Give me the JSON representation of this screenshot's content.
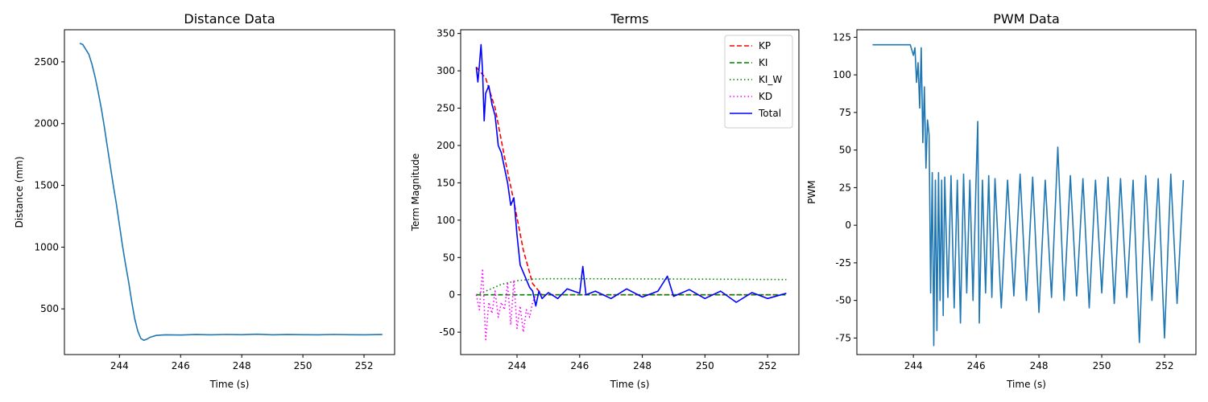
{
  "chart_data": [
    {
      "type": "line",
      "title": "Distance Data",
      "xlabel": "Time (s)",
      "ylabel": "Distance (mm)",
      "xlim": [
        242.2,
        253.0
      ],
      "ylim": [
        130,
        2760
      ],
      "xticks": [
        244,
        246,
        248,
        250,
        252
      ],
      "yticks": [
        500,
        1000,
        1500,
        2000,
        2500
      ],
      "series": [
        {
          "color": "#1f77b4",
          "style": "solid",
          "x": [
            242.7,
            242.8,
            242.9,
            243.0,
            243.1,
            243.2,
            243.3,
            243.4,
            243.5,
            243.6,
            243.7,
            243.8,
            243.9,
            244.0,
            244.1,
            244.2,
            244.3,
            244.4,
            244.5,
            244.6,
            244.7,
            244.8,
            244.9,
            245.0,
            245.2,
            245.5,
            246.0,
            246.5,
            247.0,
            247.5,
            248.0,
            248.5,
            249.0,
            249.5,
            250.0,
            250.5,
            251.0,
            251.5,
            252.0,
            252.6
          ],
          "y": [
            2650,
            2640,
            2600,
            2560,
            2480,
            2380,
            2260,
            2130,
            1980,
            1820,
            1660,
            1500,
            1350,
            1180,
            1010,
            860,
            720,
            560,
            420,
            320,
            260,
            245,
            255,
            270,
            285,
            290,
            288,
            292,
            290,
            293,
            291,
            295,
            290,
            292,
            291,
            290,
            293,
            291,
            290,
            292
          ]
        }
      ]
    },
    {
      "type": "line",
      "title": "Terms",
      "xlabel": "Time (s)",
      "ylabel": "Term Magnitude",
      "xlim": [
        242.2,
        253.0
      ],
      "ylim": [
        -80,
        355
      ],
      "xticks": [
        244,
        246,
        248,
        250,
        252
      ],
      "yticks": [
        -50,
        0,
        50,
        100,
        150,
        200,
        250,
        300,
        350
      ],
      "legend_position": "upper-right",
      "series": [
        {
          "name": "KP",
          "color": "#ff0000",
          "style": "dashed",
          "x": [
            242.7,
            243.0,
            243.3,
            243.6,
            243.9,
            244.2,
            244.5,
            244.8,
            245.5,
            252.6
          ],
          "y": [
            305,
            290,
            250,
            185,
            125,
            60,
            15,
            0,
            0,
            0
          ]
        },
        {
          "name": "KI",
          "color": "#008000",
          "style": "dashed",
          "x": [
            242.7,
            244.5,
            252.6
          ],
          "y": [
            0,
            0,
            0
          ]
        },
        {
          "name": "KI_W",
          "color": "#008000",
          "style": "dotted",
          "x": [
            242.7,
            243.0,
            243.5,
            244.0,
            244.5,
            245.0,
            246.0,
            248.0,
            250.0,
            252.6
          ],
          "y": [
            0,
            5,
            14,
            19,
            21,
            21.5,
            21.5,
            21.3,
            21.0,
            20.5
          ]
        },
        {
          "name": "KD",
          "color": "#ff00ff",
          "style": "dotted",
          "x": [
            242.7,
            242.8,
            242.9,
            243.0,
            243.1,
            243.2,
            243.3,
            243.4,
            243.5,
            243.6,
            243.7,
            243.8,
            243.9,
            244.0,
            244.1,
            244.2,
            244.3,
            244.4,
            244.5,
            244.6
          ],
          "y": [
            0,
            -20,
            35,
            -60,
            -10,
            -25,
            5,
            -30,
            -10,
            -20,
            15,
            -40,
            20,
            -45,
            -15,
            -50,
            -20,
            -30,
            -10,
            0
          ]
        },
        {
          "name": "Total",
          "color": "#0000ff",
          "style": "solid",
          "x": [
            242.7,
            242.75,
            242.8,
            242.85,
            242.9,
            242.95,
            243.0,
            243.1,
            243.2,
            243.3,
            243.4,
            243.5,
            243.6,
            243.7,
            243.8,
            243.9,
            244.0,
            244.1,
            244.2,
            244.3,
            244.4,
            244.5,
            244.6,
            244.7,
            244.8,
            245.0,
            245.3,
            245.6,
            246.0,
            246.1,
            246.2,
            246.5,
            247.0,
            247.5,
            248.0,
            248.5,
            248.8,
            249.0,
            249.5,
            250.0,
            250.5,
            251.0,
            251.5,
            252.0,
            252.6
          ],
          "y": [
            305,
            285,
            308,
            335,
            300,
            233,
            270,
            280,
            255,
            240,
            200,
            190,
            170,
            150,
            120,
            130,
            80,
            40,
            30,
            20,
            10,
            5,
            -15,
            5,
            -5,
            3,
            -5,
            8,
            2,
            38,
            0,
            5,
            -5,
            8,
            -3,
            5,
            25,
            -2,
            7,
            -5,
            5,
            -10,
            3,
            -5,
            2
          ]
        }
      ]
    },
    {
      "type": "line",
      "title": "PWM Data",
      "xlabel": "Time (s)",
      "ylabel": "PWM",
      "xlim": [
        242.2,
        253.0
      ],
      "ylim": [
        -86,
        130
      ],
      "xticks": [
        244,
        246,
        248,
        250,
        252
      ],
      "yticks": [
        -75,
        -50,
        -25,
        0,
        25,
        50,
        75,
        100,
        125
      ],
      "series": [
        {
          "color": "#1f77b4",
          "style": "solid",
          "x": [
            242.7,
            243.2,
            243.6,
            243.9,
            244.0,
            244.05,
            244.1,
            244.15,
            244.2,
            244.25,
            244.3,
            244.35,
            244.4,
            244.45,
            244.5,
            244.55,
            244.6,
            244.65,
            244.7,
            244.75,
            244.8,
            244.85,
            244.9,
            244.95,
            245.0,
            245.1,
            245.2,
            245.3,
            245.4,
            245.5,
            245.6,
            245.7,
            245.8,
            245.9,
            246.0,
            246.05,
            246.1,
            246.2,
            246.3,
            246.4,
            246.5,
            246.6,
            246.8,
            247.0,
            247.2,
            247.4,
            247.6,
            247.8,
            248.0,
            248.2,
            248.4,
            248.6,
            248.8,
            249.0,
            249.2,
            249.4,
            249.6,
            249.8,
            250.0,
            250.2,
            250.4,
            250.6,
            250.8,
            251.0,
            251.2,
            251.4,
            251.6,
            251.8,
            252.0,
            252.2,
            252.4,
            252.6
          ],
          "y": [
            120,
            120,
            120,
            120,
            113,
            118,
            95,
            108,
            78,
            118,
            55,
            92,
            38,
            70,
            60,
            -45,
            35,
            -80,
            30,
            -70,
            35,
            -50,
            30,
            -60,
            32,
            -48,
            33,
            -55,
            30,
            -65,
            34,
            -45,
            30,
            -50,
            32,
            69,
            -65,
            30,
            -45,
            33,
            -48,
            31,
            -55,
            30,
            -47,
            34,
            -50,
            32,
            -58,
            30,
            -48,
            52,
            -50,
            33,
            -47,
            31,
            -55,
            30,
            -45,
            32,
            -52,
            31,
            -48,
            30,
            -78,
            33,
            -50,
            31,
            -75,
            34,
            -52,
            30
          ]
        }
      ]
    }
  ]
}
